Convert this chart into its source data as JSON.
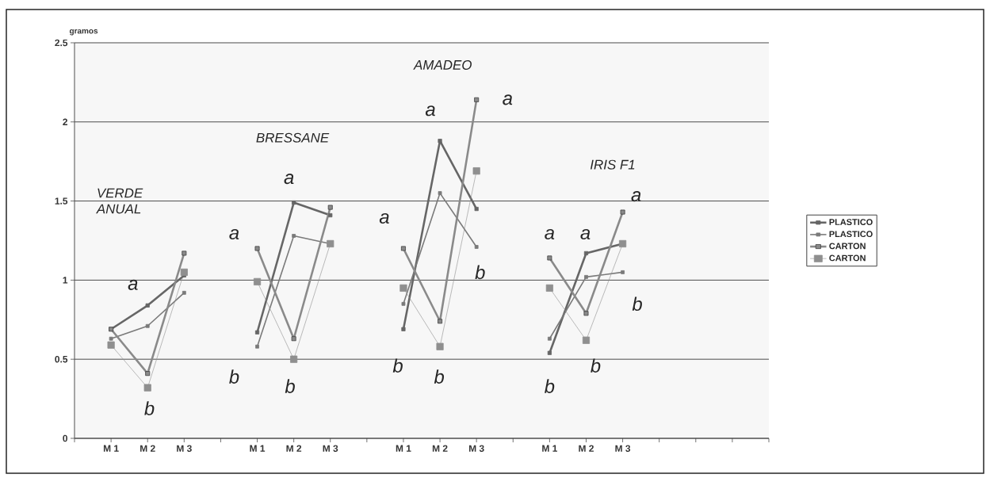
{
  "chart_data": {
    "type": "line",
    "ylabel": "gramos",
    "categories": [
      null,
      "M 1",
      "M 2",
      "M 3",
      null,
      "M 1",
      "M 2",
      "M 3",
      null,
      "M 1",
      "M 2",
      "M 3",
      null,
      "M 1",
      "M 2",
      "M 3",
      null,
      null,
      null,
      null
    ],
    "series": [
      {
        "name": "PLASTICO",
        "color": "#666666",
        "values": [
          null,
          0.69,
          0.84,
          1.03,
          null,
          0.67,
          1.49,
          1.41,
          null,
          0.69,
          1.88,
          1.45,
          null,
          0.54,
          1.17,
          1.23,
          null,
          null,
          null,
          null
        ]
      },
      {
        "name": "PLASTICO",
        "color": "#7a7a7a",
        "values": [
          null,
          0.63,
          0.71,
          0.92,
          null,
          0.58,
          1.28,
          1.23,
          null,
          0.85,
          1.55,
          1.21,
          null,
          0.63,
          1.02,
          1.05,
          null,
          null,
          null,
          null
        ]
      },
      {
        "name": "CARTON",
        "color": "#8a8a8a",
        "values": [
          null,
          0.69,
          0.41,
          1.17,
          null,
          1.2,
          0.63,
          1.46,
          null,
          1.2,
          0.74,
          2.14,
          null,
          1.14,
          0.79,
          1.43,
          null,
          null,
          null,
          null
        ]
      },
      {
        "name": "CARTON",
        "color": "#8f8f8f",
        "values": [
          null,
          0.59,
          0.32,
          1.05,
          null,
          0.99,
          0.5,
          1.23,
          null,
          0.95,
          0.58,
          1.69,
          null,
          0.95,
          0.62,
          1.23,
          null,
          null,
          null,
          null
        ]
      }
    ],
    "ylim": [
      0,
      2.5
    ],
    "yticks": [
      0,
      0.5,
      1,
      1.5,
      2,
      2.5
    ],
    "grid": "y",
    "legend": "right",
    "marker": "square",
    "annotations": [
      "VERDE ANUAL",
      "a",
      "b",
      "BRESSANE",
      "a",
      "b",
      "a",
      "b",
      "AMADEO",
      "a",
      "b",
      "a",
      "b",
      "a",
      "b",
      "IRIS F1",
      "a",
      "a",
      "a",
      "b",
      "b",
      "b"
    ]
  }
}
